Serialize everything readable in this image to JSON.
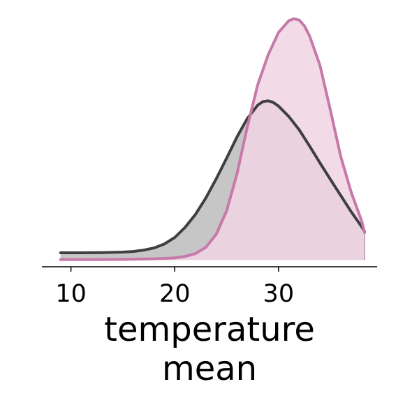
{
  "chart_data": {
    "type": "area",
    "title": "",
    "xlabel": [
      "temperature",
      "mean"
    ],
    "ylabel": "",
    "xlim": [
      7.2,
      39.5
    ],
    "ylim": [
      -0.004,
      0.148
    ],
    "xticks": [
      10,
      20,
      30
    ],
    "grid": false,
    "legend": "none",
    "show_y_axis": false,
    "series": [
      {
        "color": "#3f3f3f",
        "fill": "#c6c6c6",
        "x": [
          9.0,
          11.0,
          13.0,
          15.0,
          16.0,
          17.0,
          18.0,
          19.0,
          20.0,
          21.0,
          22.0,
          23.0,
          24.0,
          25.0,
          26.0,
          27.0,
          28.0,
          28.5,
          29.0,
          29.5,
          30.0,
          31.0,
          32.0,
          33.0,
          34.0,
          35.0,
          36.0,
          37.0,
          38.0,
          38.3
        ],
        "y": [
          0.0044,
          0.0044,
          0.0045,
          0.0048,
          0.0052,
          0.006,
          0.0073,
          0.0097,
          0.0136,
          0.0197,
          0.0275,
          0.0374,
          0.0489,
          0.0613,
          0.0741,
          0.0852,
          0.0932,
          0.0953,
          0.0958,
          0.0948,
          0.0926,
          0.0863,
          0.0783,
          0.0685,
          0.0584,
          0.0485,
          0.0388,
          0.0291,
          0.0202,
          0.0171
        ]
      },
      {
        "color": "#c779a9",
        "fill": "#f0d5e3",
        "alpha": 0.85,
        "x": [
          9.0,
          12.0,
          15.0,
          18.0,
          20.0,
          21.0,
          22.0,
          23.0,
          24.0,
          25.0,
          26.0,
          27.0,
          28.0,
          29.0,
          30.0,
          31.0,
          31.5,
          32.0,
          32.5,
          33.0,
          34.0,
          35.0,
          36.0,
          37.0,
          38.0,
          38.3
        ],
        "y": [
          0.0003,
          0.0003,
          0.0004,
          0.0008,
          0.0013,
          0.0022,
          0.0039,
          0.0077,
          0.0155,
          0.0296,
          0.0519,
          0.0802,
          0.1055,
          0.1234,
          0.1369,
          0.144,
          0.1451,
          0.1443,
          0.1408,
          0.1347,
          0.117,
          0.0901,
          0.0622,
          0.0409,
          0.0237,
          0.0166
        ]
      }
    ]
  }
}
